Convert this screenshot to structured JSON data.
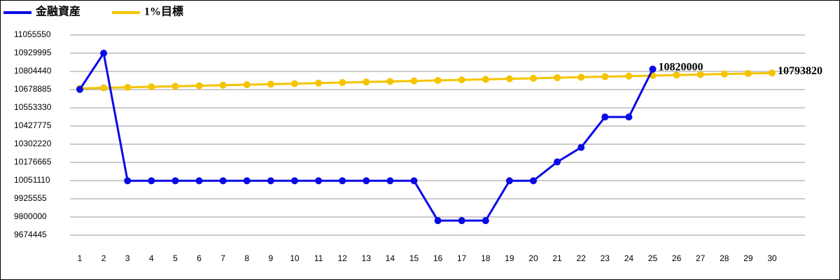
{
  "chart_data": {
    "type": "line",
    "categories": [
      "1",
      "2",
      "3",
      "4",
      "5",
      "6",
      "7",
      "8",
      "9",
      "10",
      "11",
      "12",
      "13",
      "14",
      "15",
      "16",
      "17",
      "18",
      "19",
      "20",
      "21",
      "22",
      "23",
      "24",
      "25",
      "26",
      "27",
      "28",
      "29",
      "30"
    ],
    "series": [
      {
        "name": "金融資産",
        "color": "#0a0ae6",
        "values": [
          10680000,
          10930000,
          10050000,
          10050000,
          10050000,
          10050000,
          10050000,
          10050000,
          10050000,
          10050000,
          10050000,
          10050000,
          10050000,
          10050000,
          10050000,
          9775000,
          9775000,
          9775000,
          10050000,
          10050000,
          10180000,
          10280000,
          10490000,
          10490000,
          10820000,
          null,
          null,
          null,
          null,
          null
        ],
        "value_labels": [
          null,
          null,
          null,
          null,
          null,
          null,
          null,
          null,
          null,
          null,
          null,
          null,
          null,
          null,
          null,
          null,
          null,
          null,
          null,
          null,
          null,
          null,
          null,
          null,
          "10820000",
          null,
          null,
          null,
          null,
          null
        ]
      },
      {
        "name": "1%目標",
        "color": "#f5c400",
        "values": [
          10687000,
          10690700,
          10694400,
          10698000,
          10701700,
          10705400,
          10709100,
          10712800,
          10716500,
          10720200,
          10723800,
          10727500,
          10731200,
          10734900,
          10738600,
          10742300,
          10745900,
          10749600,
          10753300,
          10757000,
          10760700,
          10764400,
          10768000,
          10771700,
          10775400,
          10779100,
          10782800,
          10786500,
          10790100,
          10793820
        ],
        "value_labels": [
          null,
          null,
          null,
          null,
          null,
          null,
          null,
          null,
          null,
          null,
          null,
          null,
          null,
          null,
          null,
          null,
          null,
          null,
          null,
          null,
          null,
          null,
          null,
          null,
          null,
          null,
          null,
          null,
          null,
          "10793820"
        ]
      }
    ],
    "ylim": [
      9674445,
      11055550
    ],
    "yticks": [
      9674445,
      9800000,
      9925555,
      10051110,
      10176665,
      10302220,
      10427775,
      10553330,
      10678885,
      10804440,
      10929995,
      11055550
    ],
    "grid": true,
    "legend": "top-left"
  }
}
